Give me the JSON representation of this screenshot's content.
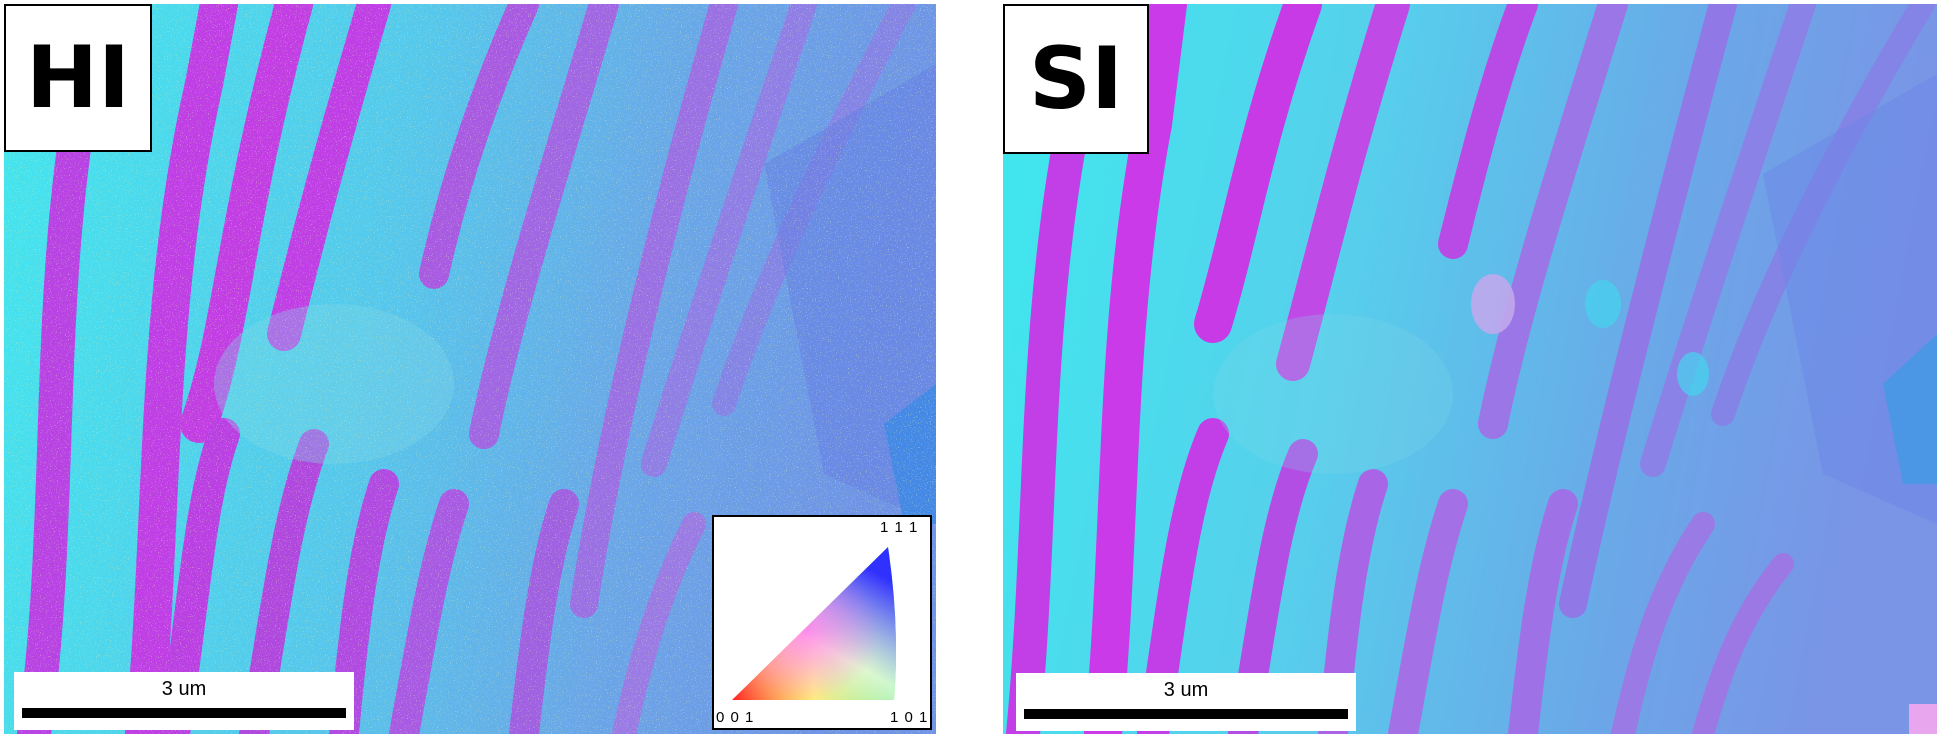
{
  "panels": [
    {
      "label": "HI",
      "scale_bar": "3 um",
      "ipf_key": {
        "corner_top": "1 1 1",
        "corner_bottom_left": "0 0 1",
        "corner_bottom_right": "1 0 1"
      }
    },
    {
      "label": "SI",
      "scale_bar": "3 um"
    }
  ],
  "colors": {
    "cyan_grain": "#43e6ee",
    "magenta_lamella": "#c03ee6",
    "blue_grain": "#6c9be6",
    "violet": "#9a78e6",
    "noise_green": "#b6e06a",
    "noise_white": "#f4f4f0"
  }
}
